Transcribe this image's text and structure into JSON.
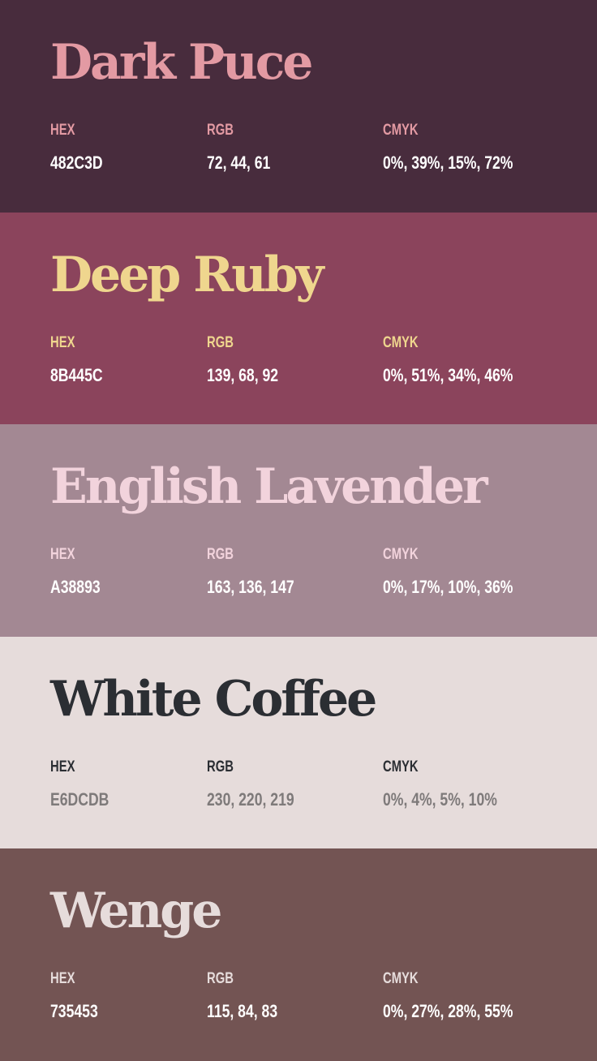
{
  "palette": [
    {
      "name": "Dark Puce",
      "hex_label": "HEX",
      "hex": "482C3D",
      "rgb_label": "RGB",
      "rgb": "72, 44, 61",
      "cmyk_label": "CMYK",
      "cmyk": "0%, 39%, 15%, 72%",
      "colors": {
        "background": "#482C3D",
        "title": "#E39AA3",
        "label": "#E39AA3",
        "value": "#FFFFFF"
      }
    },
    {
      "name": "Deep Ruby",
      "hex_label": "HEX",
      "hex": "8B445C",
      "rgb_label": "RGB",
      "rgb": "139, 68, 92",
      "cmyk_label": "CMYK",
      "cmyk": "0%, 51%, 34%, 46%",
      "colors": {
        "background": "#8B445C",
        "title": "#EFD68E",
        "label": "#EFD68E",
        "value": "#FFFFFF"
      }
    },
    {
      "name": "English Lavender",
      "hex_label": "HEX",
      "hex": "A38893",
      "rgb_label": "RGB",
      "rgb": "163, 136, 147",
      "cmyk_label": "CMYK",
      "cmyk": "0%, 17%, 10%, 36%",
      "colors": {
        "background": "#A38893",
        "title": "#F2D3DC",
        "label": "#F2D3DC",
        "value": "#FFFFFF"
      }
    },
    {
      "name": "White Coffee",
      "hex_label": "HEX",
      "hex": "E6DCDB",
      "rgb_label": "RGB",
      "rgb": "230, 220, 219",
      "cmyk_label": "CMYK",
      "cmyk": "0%, 4%, 5%, 10%",
      "colors": {
        "background": "#E6DCDB",
        "title": "#2B2E33",
        "label": "#2B2E33",
        "value": "#7E7A7A"
      }
    },
    {
      "name": "Wenge",
      "hex_label": "HEX",
      "hex": "735453",
      "rgb_label": "RGB",
      "rgb": "115, 84, 83",
      "cmyk_label": "CMYK",
      "cmyk": "0%, 27%, 28%, 55%",
      "colors": {
        "background": "#735453",
        "title": "#E6DCDB",
        "label": "#E6DCDB",
        "value": "#FFFFFF"
      }
    }
  ]
}
